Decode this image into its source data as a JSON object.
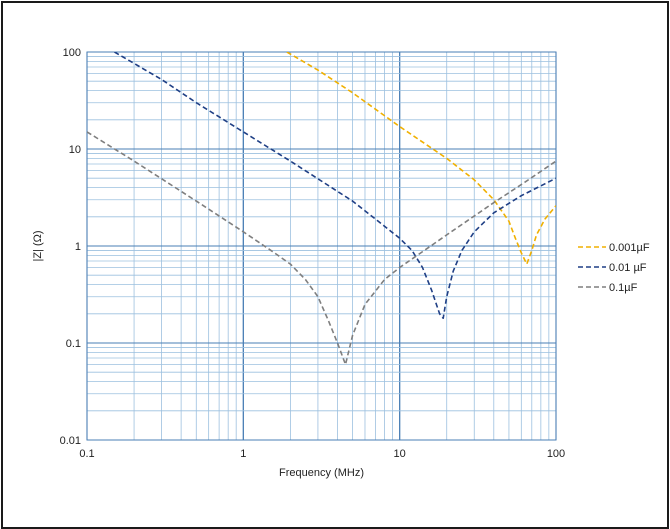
{
  "chart_data": {
    "type": "line",
    "title": "",
    "xlabel": "Frequency (MHz)",
    "ylabel": "|Z| (Ω)",
    "x_scale": "log",
    "y_scale": "log",
    "xlim": [
      0.1,
      100
    ],
    "ylim": [
      0.01,
      100
    ],
    "x_ticks": [
      0.1,
      1,
      10,
      100
    ],
    "x_tick_labels": [
      "0.1",
      "1",
      "10",
      "100"
    ],
    "y_ticks": [
      0.01,
      0.1,
      1,
      10,
      100
    ],
    "y_tick_labels": [
      "0.01",
      "0.1",
      "1",
      "10",
      "100"
    ],
    "grid": true,
    "legend_position": "right",
    "series": [
      {
        "name": "0.001µF",
        "color": "#f0b000",
        "dash": "dashed",
        "points": [
          [
            1.9,
            100
          ],
          [
            3,
            65
          ],
          [
            5,
            38
          ],
          [
            10,
            17
          ],
          [
            20,
            8
          ],
          [
            30,
            4.8
          ],
          [
            40,
            3
          ],
          [
            50,
            1.8
          ],
          [
            55,
            1.2
          ],
          [
            60,
            0.85
          ],
          [
            65,
            0.65
          ],
          [
            70,
            0.9
          ],
          [
            75,
            1.3
          ],
          [
            85,
            1.9
          ],
          [
            100,
            2.6
          ]
        ]
      },
      {
        "name": "0.01 µF",
        "color": "#1f3f85",
        "dash": "dashed",
        "points": [
          [
            0.15,
            100
          ],
          [
            0.3,
            52
          ],
          [
            0.5,
            30
          ],
          [
            1,
            15
          ],
          [
            2,
            7.5
          ],
          [
            5,
            2.9
          ],
          [
            8,
            1.6
          ],
          [
            10,
            1.2
          ],
          [
            12,
            0.9
          ],
          [
            14,
            0.6
          ],
          [
            16,
            0.35
          ],
          [
            18,
            0.2
          ],
          [
            19,
            0.18
          ],
          [
            20,
            0.3
          ],
          [
            22,
            0.55
          ],
          [
            25,
            0.9
          ],
          [
            30,
            1.4
          ],
          [
            40,
            2.2
          ],
          [
            60,
            3.3
          ],
          [
            100,
            5
          ]
        ]
      },
      {
        "name": "0.1µF",
        "color": "#7f7f7f",
        "dash": "dashed",
        "points": [
          [
            0.1,
            15
          ],
          [
            0.2,
            7.5
          ],
          [
            0.5,
            2.9
          ],
          [
            1,
            1.4
          ],
          [
            1.5,
            0.9
          ],
          [
            2,
            0.65
          ],
          [
            2.5,
            0.45
          ],
          [
            3,
            0.3
          ],
          [
            3.5,
            0.17
          ],
          [
            4,
            0.1
          ],
          [
            4.5,
            0.06
          ],
          [
            5,
            0.12
          ],
          [
            6,
            0.25
          ],
          [
            8,
            0.45
          ],
          [
            10,
            0.6
          ],
          [
            20,
            1.3
          ],
          [
            40,
            2.8
          ],
          [
            60,
            4.3
          ],
          [
            100,
            7.5
          ]
        ]
      }
    ]
  }
}
